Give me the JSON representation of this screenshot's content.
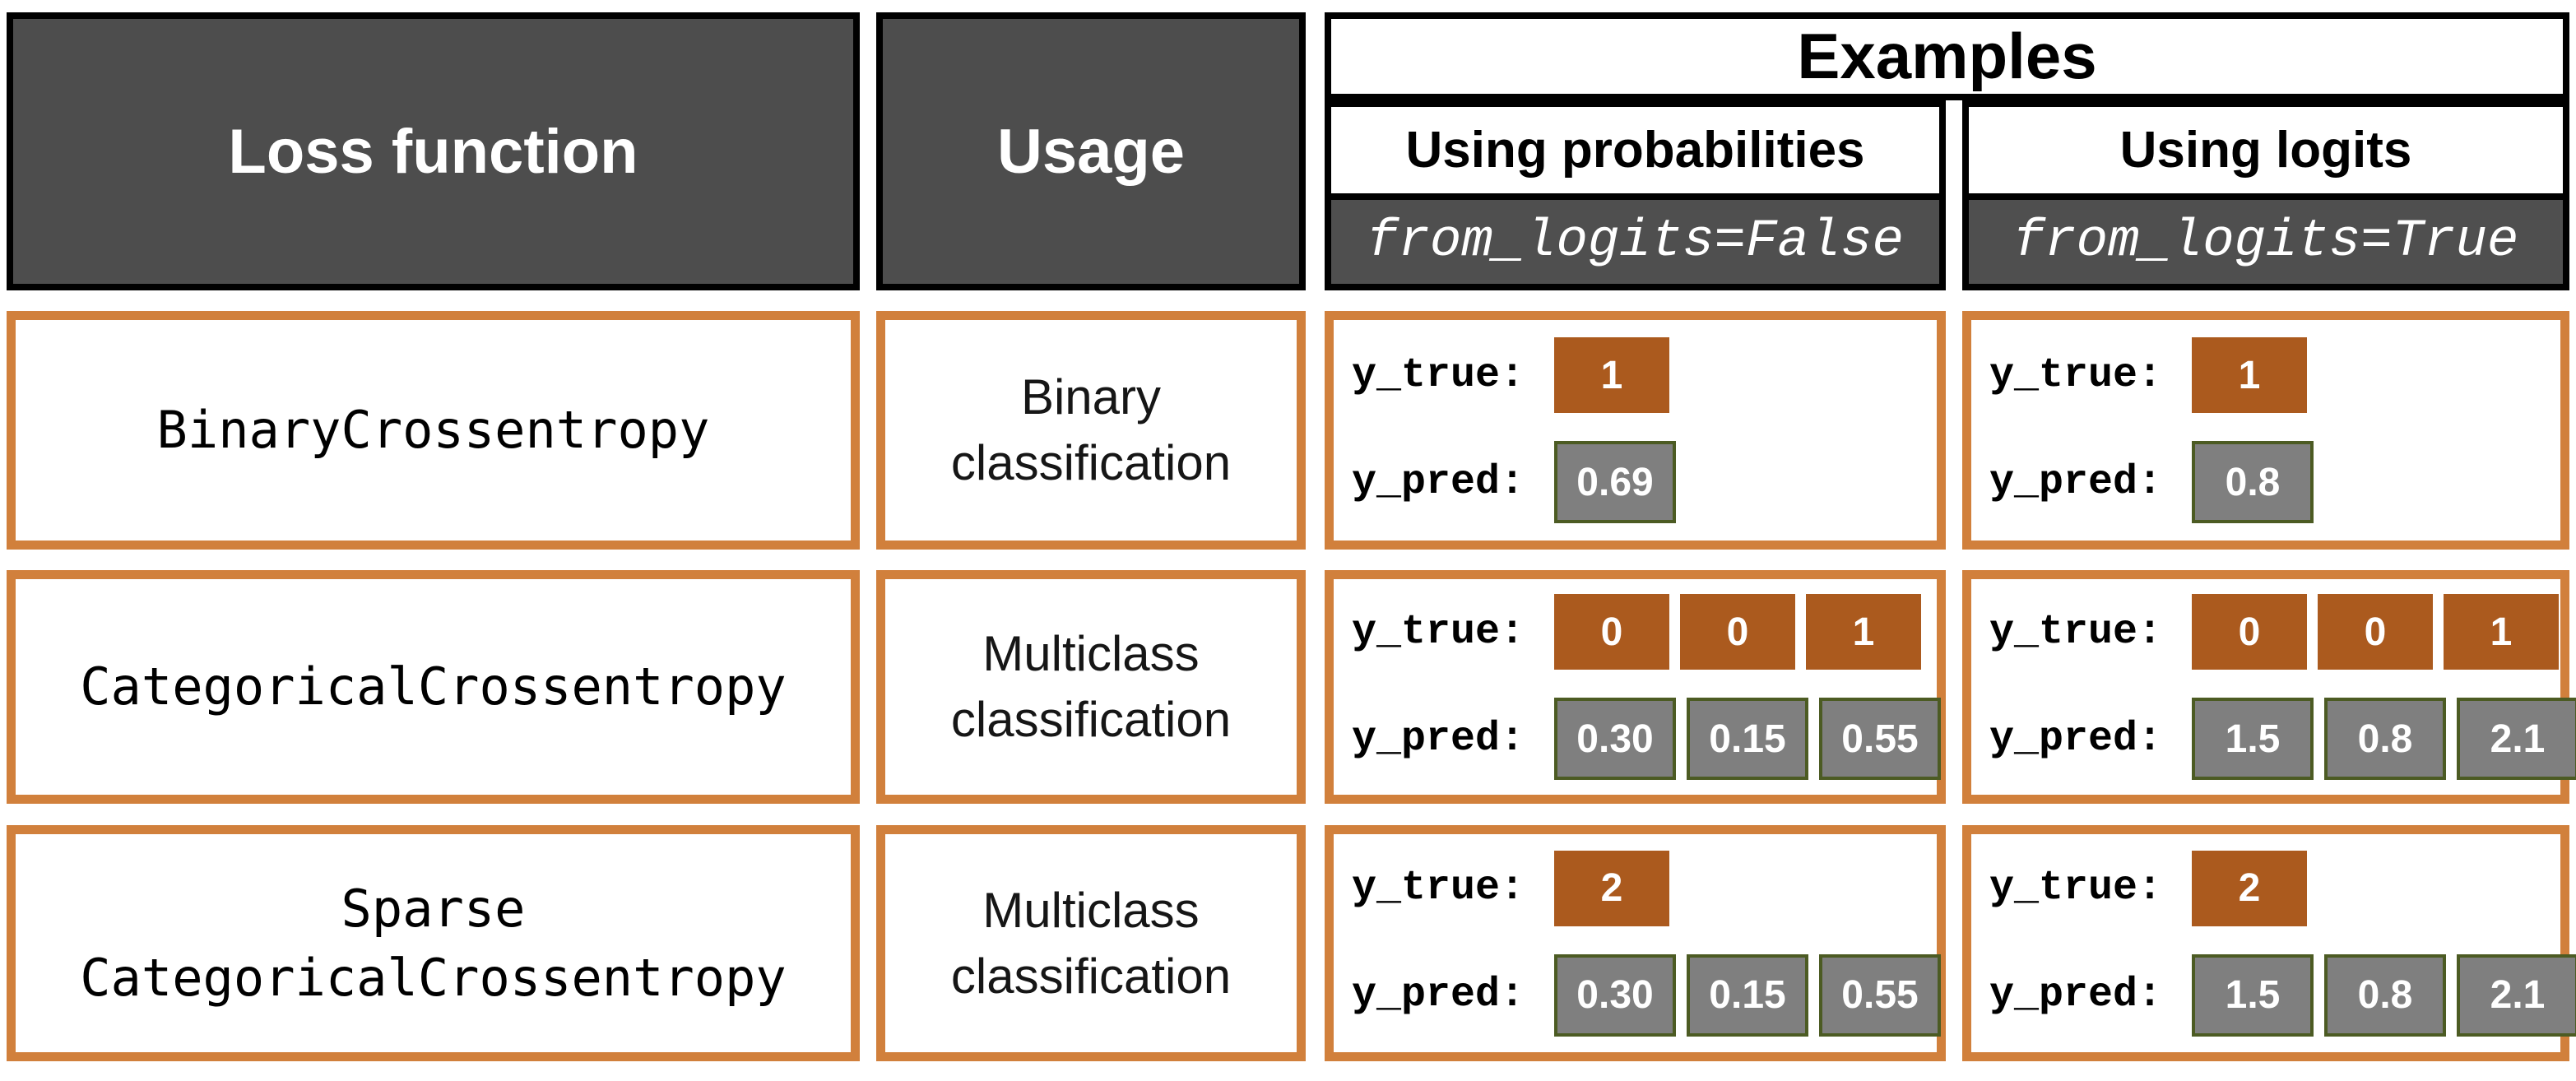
{
  "header": {
    "loss_function": "Loss function",
    "usage": "Usage",
    "examples": "Examples",
    "using_probabilities": "Using probabilities",
    "using_logits": "Using logits",
    "from_logits_false": "from_logits=False",
    "from_logits_true": "from_logits=True"
  },
  "labels": {
    "y_true": "y_true:",
    "y_pred": "y_pred:"
  },
  "rows": [
    {
      "loss_function": "BinaryCrossentropy",
      "usage": [
        "Binary",
        "classification"
      ],
      "probabilities": {
        "y_true": [
          "1"
        ],
        "y_pred": [
          "0.69"
        ]
      },
      "logits": {
        "y_true": [
          "1"
        ],
        "y_pred": [
          "0.8"
        ]
      }
    },
    {
      "loss_function": "CategoricalCrossentropy",
      "usage": [
        "Multiclass",
        "classification"
      ],
      "probabilities": {
        "y_true": [
          "0",
          "0",
          "1"
        ],
        "y_pred": [
          "0.30",
          "0.15",
          "0.55"
        ]
      },
      "logits": {
        "y_true": [
          "0",
          "0",
          "1"
        ],
        "y_pred": [
          "1.5",
          "0.8",
          "2.1"
        ]
      }
    },
    {
      "loss_function": [
        "Sparse",
        "CategoricalCrossentropy"
      ],
      "usage": [
        "Multiclass",
        "classification"
      ],
      "probabilities": {
        "y_true": [
          "2"
        ],
        "y_pred": [
          "0.30",
          "0.15",
          "0.55"
        ]
      },
      "logits": {
        "y_true": [
          "2"
        ],
        "y_pred": [
          "1.5",
          "0.8",
          "2.1"
        ]
      }
    }
  ],
  "colors": {
    "header_fill": "#4D4D4D",
    "border_black": "#000000",
    "row_border_orange": "#D1803C",
    "y_true_box": "#AB5A1E",
    "y_pred_box": "#7F7F7F",
    "y_pred_border": "#4C5B23",
    "text_white": "#FFFFFF"
  }
}
